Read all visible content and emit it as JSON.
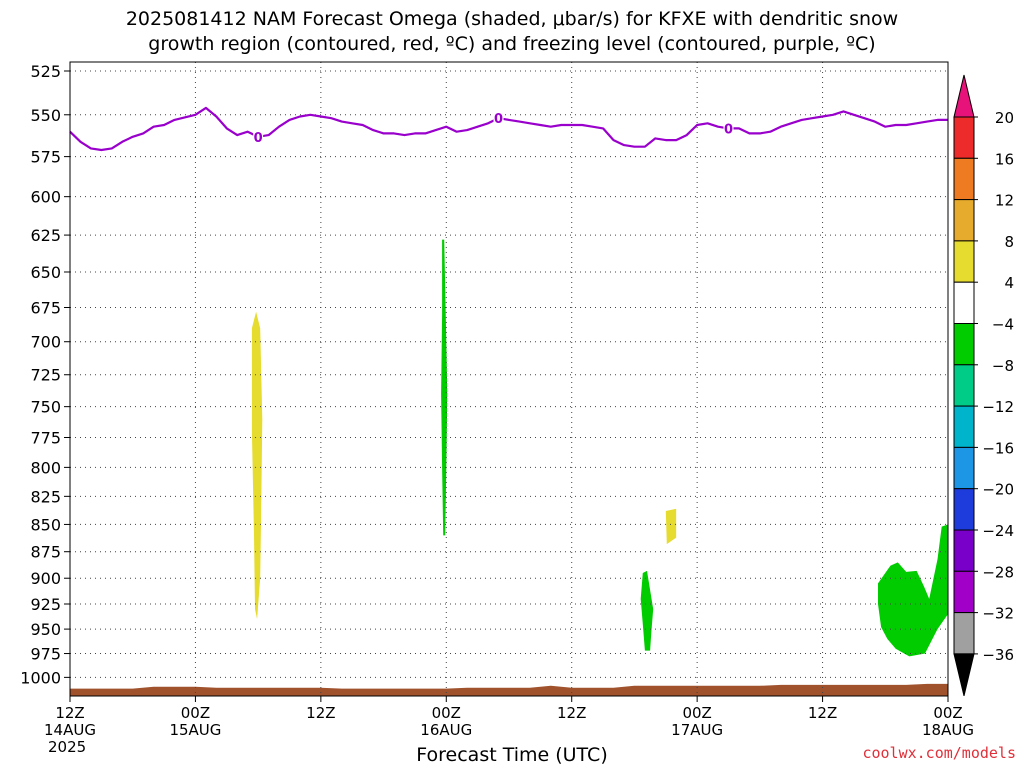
{
  "title_line1": "2025081412 NAM Forecast Omega (shaded, μbar/s) for KFXE with dendritic snow",
  "title_line2": "growth region (contoured, red, ºC) and freezing level (contoured, purple, ºC)",
  "x_axis_label": "Forecast Time (UTC)",
  "credit": "coolwx.com/models",
  "chart_data": {
    "type": "heatmap",
    "y_axis": {
      "unit": "hPa",
      "ticks": [
        525,
        550,
        575,
        600,
        625,
        650,
        675,
        700,
        725,
        750,
        775,
        800,
        825,
        850,
        875,
        900,
        925,
        950,
        975,
        1000
      ],
      "range": [
        520,
        1020
      ],
      "grid": true
    },
    "x_axis": {
      "range_hours": [
        0,
        84
      ],
      "ticks": [
        {
          "hour": 0,
          "lines": [
            "12Z",
            "14AUG",
            "2025"
          ]
        },
        {
          "hour": 12,
          "lines": [
            "00Z",
            "15AUG"
          ]
        },
        {
          "hour": 24,
          "lines": [
            "12Z"
          ]
        },
        {
          "hour": 36,
          "lines": [
            "00Z",
            "16AUG"
          ]
        },
        {
          "hour": 48,
          "lines": [
            "12Z"
          ]
        },
        {
          "hour": 60,
          "lines": [
            "00Z",
            "17AUG"
          ]
        },
        {
          "hour": 72,
          "lines": [
            "12Z"
          ]
        },
        {
          "hour": 84,
          "lines": [
            "00Z",
            "18AUG"
          ]
        }
      ],
      "grid": true
    },
    "colorbar": {
      "levels": [
        20,
        16,
        12,
        8,
        4,
        -4,
        -8,
        -12,
        -16,
        -20,
        -24,
        -28,
        -32,
        -36
      ],
      "colors": [
        "#e8137a",
        "#ee2b2b",
        "#ee7a22",
        "#e6aa2c",
        "#e6dc30",
        "#ffffff",
        "#00cc00",
        "#00cc88",
        "#00b4cc",
        "#1e96e6",
        "#1e3cdc",
        "#7800c8",
        "#a000c8",
        "#a0a0a0",
        "#000000"
      ]
    },
    "freezing_level": {
      "label": "0",
      "color": "#9900cc",
      "label_hours": [
        18,
        41,
        63
      ],
      "points": [
        [
          0,
          560
        ],
        [
          1,
          566
        ],
        [
          2,
          570
        ],
        [
          3,
          571
        ],
        [
          4,
          570
        ],
        [
          5,
          566
        ],
        [
          6,
          563
        ],
        [
          7,
          561
        ],
        [
          8,
          557
        ],
        [
          9,
          556
        ],
        [
          10,
          553
        ],
        [
          12,
          550
        ],
        [
          13,
          546
        ],
        [
          14,
          551
        ],
        [
          15,
          558
        ],
        [
          16,
          562
        ],
        [
          17,
          560
        ],
        [
          18,
          563
        ],
        [
          19,
          562
        ],
        [
          20,
          557
        ],
        [
          21,
          553
        ],
        [
          22,
          551
        ],
        [
          23,
          550
        ],
        [
          24,
          551
        ],
        [
          25,
          552
        ],
        [
          26,
          554
        ],
        [
          27,
          555
        ],
        [
          28,
          556
        ],
        [
          29,
          559
        ],
        [
          30,
          561
        ],
        [
          31,
          561
        ],
        [
          32,
          562
        ],
        [
          33,
          561
        ],
        [
          34,
          561
        ],
        [
          35,
          559
        ],
        [
          36,
          557
        ],
        [
          37,
          560
        ],
        [
          38,
          559
        ],
        [
          39,
          557
        ],
        [
          40,
          555
        ],
        [
          41,
          552
        ],
        [
          42,
          553
        ],
        [
          43,
          554
        ],
        [
          44,
          555
        ],
        [
          45,
          556
        ],
        [
          46,
          557
        ],
        [
          47,
          556
        ],
        [
          48,
          556
        ],
        [
          49,
          556
        ],
        [
          50,
          557
        ],
        [
          51,
          558
        ],
        [
          52,
          565
        ],
        [
          53,
          568
        ],
        [
          54,
          569
        ],
        [
          55,
          569
        ],
        [
          56,
          564
        ],
        [
          57,
          565
        ],
        [
          58,
          565
        ],
        [
          59,
          562
        ],
        [
          60,
          556
        ],
        [
          61,
          555
        ],
        [
          62,
          557
        ],
        [
          63,
          558
        ],
        [
          64,
          558
        ],
        [
          65,
          561
        ],
        [
          66,
          561
        ],
        [
          67,
          560
        ],
        [
          68,
          557
        ],
        [
          69,
          555
        ],
        [
          70,
          553
        ],
        [
          71,
          552
        ],
        [
          72,
          551
        ],
        [
          73,
          550
        ],
        [
          74,
          548
        ],
        [
          75,
          550
        ],
        [
          76,
          552
        ],
        [
          77,
          554
        ],
        [
          78,
          557
        ],
        [
          79,
          556
        ],
        [
          80,
          556
        ],
        [
          81,
          555
        ],
        [
          82,
          554
        ],
        [
          83,
          553
        ],
        [
          84,
          553
        ]
      ]
    },
    "omega_regions": [
      {
        "value_bin": "4 to 8",
        "color": "#e6dc30",
        "polygon": [
          [
            17.4,
            690
          ],
          [
            17.8,
            678
          ],
          [
            18.2,
            690
          ],
          [
            18.4,
            760
          ],
          [
            18.3,
            830
          ],
          [
            18.2,
            900
          ],
          [
            17.9,
            940
          ],
          [
            17.7,
            930
          ],
          [
            17.6,
            860
          ],
          [
            17.4,
            770
          ]
        ]
      },
      {
        "value_bin": "-4 to -8",
        "color": "#00cc00",
        "polygon": [
          [
            35.6,
            628
          ],
          [
            35.8,
            628
          ],
          [
            36.0,
            700
          ],
          [
            36.1,
            740
          ],
          [
            36.0,
            800
          ],
          [
            35.9,
            860
          ],
          [
            35.7,
            860
          ],
          [
            35.6,
            800
          ],
          [
            35.5,
            740
          ],
          [
            35.6,
            680
          ]
        ]
      },
      {
        "value_bin": "4 to 8",
        "color": "#e6dc30",
        "polygon": [
          [
            57.0,
            838
          ],
          [
            58.0,
            836
          ],
          [
            58.0,
            862
          ],
          [
            57.1,
            868
          ]
        ]
      },
      {
        "value_bin": "-4 to -8",
        "color": "#00cc00",
        "polygon": [
          [
            54.8,
            895
          ],
          [
            55.2,
            893
          ],
          [
            55.8,
            930
          ],
          [
            55.6,
            955
          ],
          [
            55.5,
            972
          ],
          [
            55.0,
            972
          ],
          [
            54.8,
            945
          ],
          [
            54.6,
            920
          ]
        ]
      },
      {
        "value_bin": "-4 to -8",
        "color": "#00cc00",
        "polygon": [
          [
            77.3,
            905
          ],
          [
            78.5,
            888
          ],
          [
            79.2,
            885
          ],
          [
            80.0,
            894
          ],
          [
            81.0,
            893
          ],
          [
            81.7,
            908
          ],
          [
            82.2,
            920
          ],
          [
            83.0,
            882
          ],
          [
            83.4,
            852
          ],
          [
            84.0,
            850
          ],
          [
            84.0,
            935
          ],
          [
            83.0,
            950
          ],
          [
            81.8,
            975
          ],
          [
            80.3,
            978
          ],
          [
            79.0,
            970
          ],
          [
            78.2,
            960
          ],
          [
            77.6,
            948
          ],
          [
            77.3,
            925
          ]
        ]
      }
    ],
    "terrain": {
      "color": "#a0522d",
      "points": [
        [
          0,
          1012
        ],
        [
          6,
          1012
        ],
        [
          8,
          1010
        ],
        [
          12,
          1010
        ],
        [
          14,
          1011
        ],
        [
          24,
          1011
        ],
        [
          26,
          1012
        ],
        [
          36,
          1012
        ],
        [
          38,
          1011
        ],
        [
          44,
          1011
        ],
        [
          46,
          1009
        ],
        [
          48,
          1011
        ],
        [
          52,
          1011
        ],
        [
          54,
          1009
        ],
        [
          66,
          1009
        ],
        [
          68,
          1008
        ],
        [
          80,
          1008
        ],
        [
          82,
          1007
        ],
        [
          84,
          1007
        ]
      ]
    }
  }
}
